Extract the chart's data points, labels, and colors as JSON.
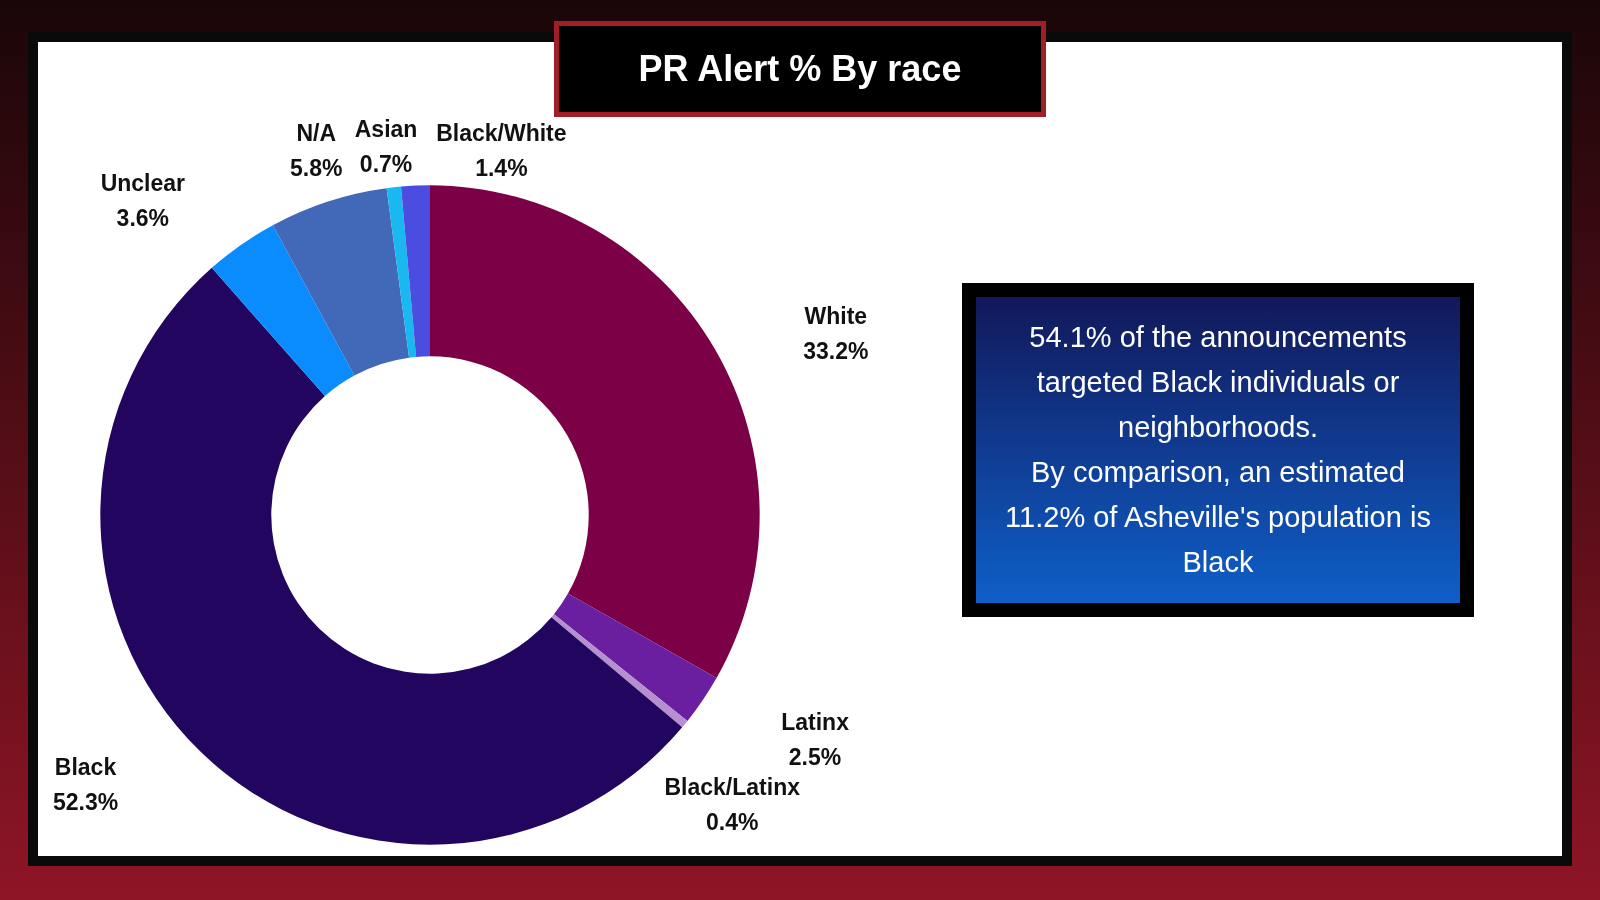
{
  "chart_data": {
    "type": "donut",
    "title": "PR Alert % By race",
    "categories": [
      "White",
      "Latinx",
      "Black/Latinx",
      "Black",
      "Unclear",
      "N/A",
      "Asian",
      "Black/White"
    ],
    "values": [
      33.2,
      2.5,
      0.4,
      52.3,
      3.6,
      5.8,
      0.7,
      1.4
    ],
    "value_labels": [
      "33.2%",
      "2.5%",
      "0.4%",
      "52.3%",
      "3.6%",
      "5.8%",
      "0.7%",
      "1.4%"
    ],
    "colors": [
      "#7b0046",
      "#6a1fa0",
      "#b58fd0",
      "#22055f",
      "#0a8cff",
      "#4169b8",
      "#19b8f0",
      "#4a4de0"
    ],
    "annotations": [
      "54.1% of the announcements targeted Black individuals or neighborhoods.",
      "By comparison, an estimated 11.2% of Asheville's population is Black"
    ]
  }
}
